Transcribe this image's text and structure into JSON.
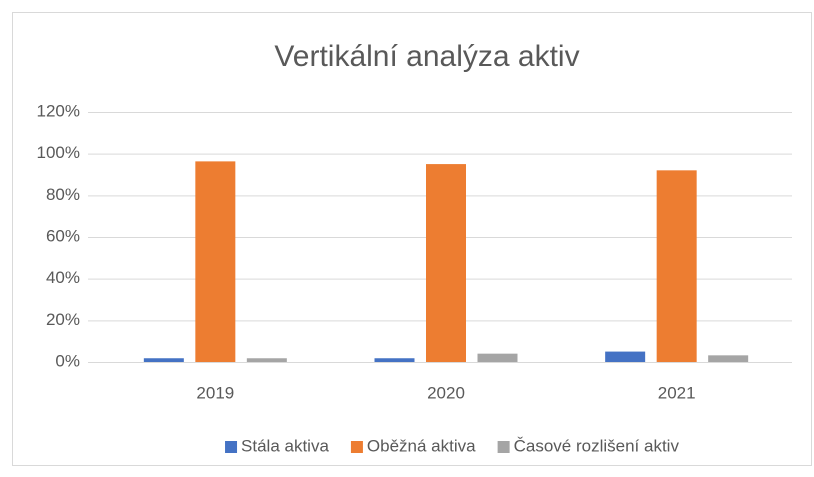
{
  "chart_data": {
    "type": "bar",
    "title": "Vertikální analýza aktiv",
    "categories": [
      "2019",
      "2020",
      "2021"
    ],
    "series": [
      {
        "name": "Stála aktiva",
        "color": "#4472c4",
        "values": [
          1.8,
          1.8,
          5
        ]
      },
      {
        "name": "Oběžná aktiva",
        "color": "#ed7d31",
        "values": [
          96.3,
          95,
          92
        ]
      },
      {
        "name": "Časové rozlišení aktiv",
        "color": "#a5a5a5",
        "values": [
          1.8,
          4,
          3.2
        ]
      }
    ],
    "ylim": [
      0,
      120
    ],
    "yticks": [
      {
        "value": 0,
        "label": "0%"
      },
      {
        "value": 20,
        "label": "20%"
      },
      {
        "value": 40,
        "label": "40%"
      },
      {
        "value": 60,
        "label": "60%"
      },
      {
        "value": 80,
        "label": "80%"
      },
      {
        "value": 100,
        "label": "100%"
      },
      {
        "value": 120,
        "label": "120%"
      }
    ],
    "grid": true,
    "legend": "bottom"
  }
}
